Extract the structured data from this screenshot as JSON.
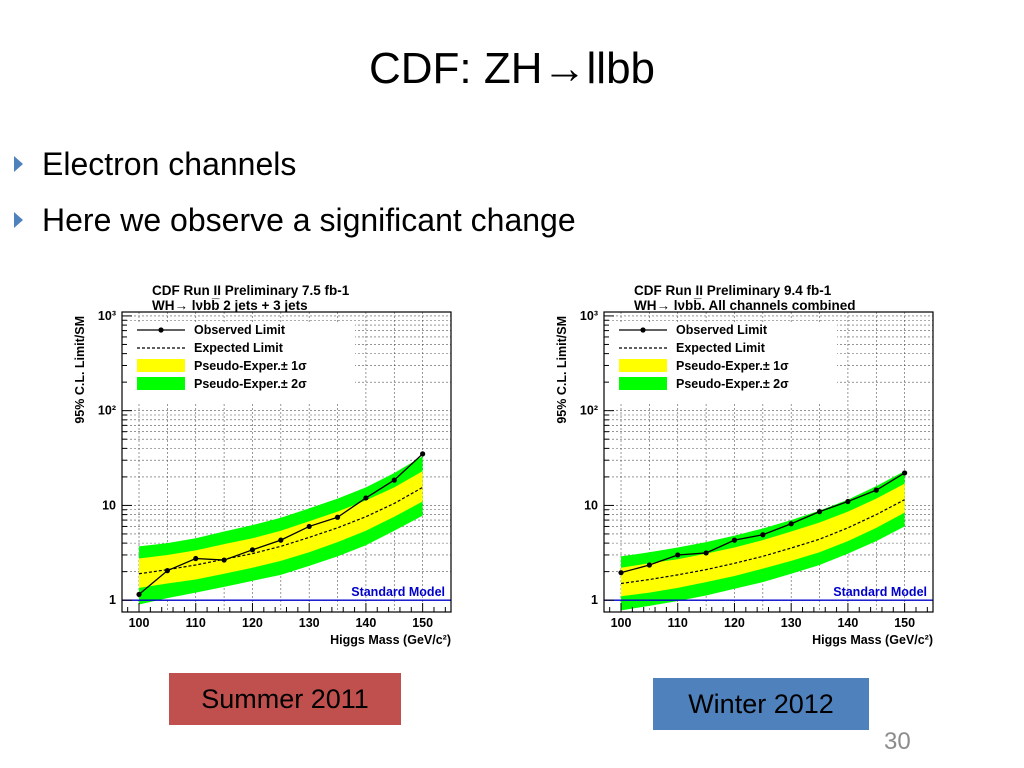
{
  "slide": {
    "title": "CDF: ZH→llbb",
    "bullets": [
      "Electron channels",
      "Here we observe a significant change"
    ],
    "label_left": "Summer 2011",
    "label_right": "Winter 2012",
    "page_number": "30",
    "colors": {
      "bullet": "#4f81bd",
      "label_left_bg": "#c0504d",
      "label_right_bg": "#4f81bd"
    }
  },
  "chart_data": [
    {
      "type": "line",
      "title": "CDF Run II Preliminary 7.5 fb-1",
      "subtitle": "WH→ lνbb̅ 2 jets + 3 jets",
      "xlabel": "Higgs Mass (GeV/c²)",
      "ylabel": "95% C.L. Limit/SM",
      "x_ticks": [
        "100",
        "110",
        "120",
        "130",
        "140",
        "150"
      ],
      "y_ticks": [
        "1",
        "10",
        "10²",
        "10³"
      ],
      "xlim": [
        97,
        155
      ],
      "ylim": [
        0.75,
        1100
      ],
      "yscale": "log",
      "grid": true,
      "legend_position": "top-left",
      "legend": [
        "Observed Limit",
        "Expected Limit",
        "Pseudo-Exper.± 1σ",
        "Pseudo-Exper.± 2σ"
      ],
      "reference_label": "Standard Model",
      "x": [
        100,
        105,
        110,
        115,
        120,
        125,
        130,
        135,
        140,
        145,
        150
      ],
      "observed": [
        1.15,
        2.05,
        2.75,
        2.65,
        3.4,
        4.3,
        6.0,
        7.5,
        12.0,
        18.5,
        35.0
      ],
      "expected": [
        1.9,
        2.1,
        2.35,
        2.7,
        3.1,
        3.7,
        4.6,
        5.8,
        7.6,
        10.5,
        15.5
      ],
      "band_1sigma": {
        "low": [
          1.35,
          1.5,
          1.65,
          1.9,
          2.2,
          2.6,
          3.2,
          4.1,
          5.4,
          7.6,
          11.0
        ],
        "high": [
          2.75,
          3.0,
          3.35,
          3.9,
          4.5,
          5.4,
          6.8,
          8.6,
          11.3,
          15.5,
          23.0
        ]
      },
      "band_2sigma": {
        "low": [
          0.9,
          1.05,
          1.2,
          1.38,
          1.6,
          1.85,
          2.3,
          2.9,
          3.8,
          5.4,
          7.8
        ],
        "high": [
          3.7,
          4.0,
          4.5,
          5.3,
          6.2,
          7.4,
          9.3,
          11.8,
          15.5,
          22.0,
          33.0
        ]
      },
      "colors": {
        "band_1sigma": "#ffff00",
        "band_2sigma": "#00ff00",
        "standard_model": "#0000cc"
      }
    },
    {
      "type": "line",
      "title": "CDF Run II Preliminary 9.4 fb-1",
      "subtitle": "WH→ lνbb̅. All channels combined",
      "xlabel": "Higgs Mass (GeV/c²)",
      "ylabel": "95% C.L. Limit/SM",
      "x_ticks": [
        "100",
        "110",
        "120",
        "130",
        "140",
        "150"
      ],
      "y_ticks": [
        "1",
        "10",
        "10²",
        "10³"
      ],
      "xlim": [
        97,
        155
      ],
      "ylim": [
        0.75,
        1100
      ],
      "yscale": "log",
      "grid": true,
      "legend_position": "top-left",
      "legend": [
        "Observed Limit",
        "Expected Limit",
        "Pseudo-Exper.± 1σ",
        "Pseudo-Exper.± 2σ"
      ],
      "reference_label": "Standard Model",
      "x": [
        100,
        105,
        110,
        115,
        120,
        125,
        130,
        135,
        140,
        145,
        150
      ],
      "observed": [
        1.95,
        2.35,
        3.0,
        3.15,
        4.3,
        4.9,
        6.4,
        8.6,
        11.0,
        14.5,
        22.0
      ],
      "expected": [
        1.5,
        1.65,
        1.85,
        2.1,
        2.45,
        2.9,
        3.55,
        4.4,
        5.8,
        8.0,
        11.5
      ],
      "band_1sigma": {
        "low": [
          1.1,
          1.2,
          1.35,
          1.55,
          1.8,
          2.15,
          2.6,
          3.2,
          4.2,
          5.8,
          8.4
        ],
        "high": [
          2.2,
          2.45,
          2.7,
          3.1,
          3.6,
          4.3,
          5.3,
          6.6,
          8.6,
          11.8,
          17.0
        ]
      },
      "band_2sigma": {
        "low": [
          0.78,
          0.87,
          0.98,
          1.12,
          1.32,
          1.55,
          1.9,
          2.35,
          3.1,
          4.2,
          6.0
        ],
        "high": [
          2.9,
          3.2,
          3.6,
          4.1,
          4.8,
          5.7,
          7.0,
          8.8,
          11.5,
          16.0,
          23.0
        ]
      },
      "colors": {
        "band_1sigma": "#ffff00",
        "band_2sigma": "#00ff00",
        "standard_model": "#0000cc"
      }
    }
  ]
}
